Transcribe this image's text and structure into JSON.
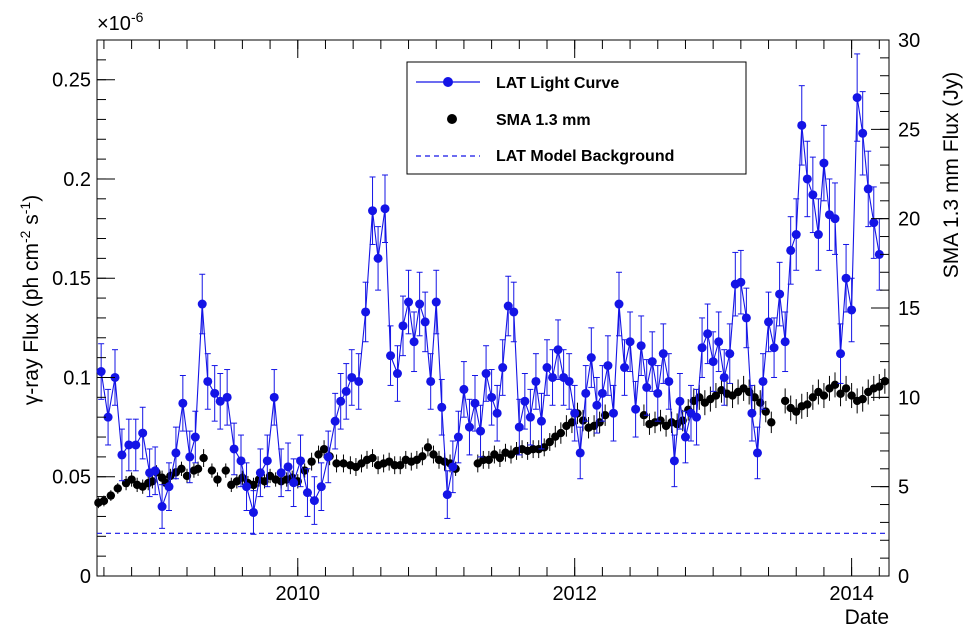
{
  "chart_data": {
    "type": "scatter",
    "x_axis": {
      "label": "Date",
      "range": [
        2008.55,
        2014.27
      ],
      "major_ticks": [
        2010,
        2012,
        2014
      ],
      "tick_labels": [
        "2010",
        "2012",
        "2014"
      ]
    },
    "y_left": {
      "label": "γ-ray Flux (ph cm⁻² s⁻¹)",
      "label_parts": {
        "pre": "γ-ray Flux (ph cm",
        "exp1": "-2",
        "mid": " s",
        "exp2": "-1",
        "post": ")"
      },
      "multiplier": "×10⁻⁶",
      "multiplier_parts": {
        "base": "×10",
        "exp": "-6"
      },
      "range": [
        0,
        0.27
      ],
      "ticks": [
        0,
        0.05,
        0.1,
        0.15,
        0.2,
        0.25
      ],
      "tick_labels": [
        "0",
        "0.05",
        "0.1",
        "0.15",
        "0.2",
        "0.25"
      ]
    },
    "y_right": {
      "label": "SMA 1.3 mm Flux (Jy)",
      "range": [
        0,
        30
      ],
      "ticks": [
        0,
        5,
        10,
        15,
        20,
        25,
        30
      ],
      "tick_labels": [
        "0",
        "5",
        "10",
        "15",
        "20",
        "25",
        "30"
      ]
    },
    "legend": {
      "placement": "top-center",
      "entries": [
        "LAT Light Curve",
        "SMA 1.3 mm",
        "LAT Model Background"
      ]
    },
    "colors": {
      "lat": "#1414e6",
      "sma": "#000000",
      "background": "#1414e6"
    },
    "series": [
      {
        "name": "LAT Light Curve",
        "axis": "left",
        "style": "line+markers",
        "x": [
          2008.58,
          2008.63,
          2008.68,
          2008.73,
          2008.78,
          2008.83,
          2008.88,
          2008.93,
          2008.97,
          2009.02,
          2009.07,
          2009.12,
          2009.17,
          2009.22,
          2009.26,
          2009.31,
          2009.35,
          2009.4,
          2009.44,
          2009.49,
          2009.54,
          2009.59,
          2009.63,
          2009.68,
          2009.73,
          2009.78,
          2009.83,
          2009.88,
          2009.93,
          2009.97,
          2010.02,
          2010.07,
          2010.12,
          2010.17,
          2010.22,
          2010.27,
          2010.31,
          2010.35,
          2010.39,
          2010.44,
          2010.49,
          2010.54,
          2010.58,
          2010.63,
          2010.67,
          2010.72,
          2010.76,
          2010.8,
          2010.84,
          2010.88,
          2010.92,
          2010.96,
          2011.0,
          2011.04,
          2011.08,
          2011.12,
          2011.16,
          2011.2,
          2011.24,
          2011.28,
          2011.32,
          2011.36,
          2011.4,
          2011.44,
          2011.48,
          2011.52,
          2011.56,
          2011.6,
          2011.64,
          2011.68,
          2011.72,
          2011.76,
          2011.8,
          2011.84,
          2011.88,
          2011.92,
          2011.96,
          2012.0,
          2012.04,
          2012.08,
          2012.12,
          2012.16,
          2012.2,
          2012.24,
          2012.28,
          2012.32,
          2012.36,
          2012.4,
          2012.44,
          2012.48,
          2012.52,
          2012.56,
          2012.6,
          2012.64,
          2012.68,
          2012.72,
          2012.76,
          2012.8,
          2012.84,
          2012.88,
          2012.92,
          2012.96,
          2013.0,
          2013.04,
          2013.08,
          2013.12,
          2013.16,
          2013.2,
          2013.24,
          2013.28,
          2013.32,
          2013.36,
          2013.4,
          2013.44,
          2013.48,
          2013.52,
          2013.56,
          2013.6,
          2013.64,
          2013.68,
          2013.72,
          2013.76,
          2013.8,
          2013.84,
          2013.88,
          2013.92,
          2013.96,
          2014.0,
          2014.04,
          2014.08,
          2014.12,
          2014.16,
          2014.2
        ],
        "y": [
          0.103,
          0.08,
          0.1,
          0.061,
          0.066,
          0.066,
          0.072,
          0.052,
          0.053,
          0.035,
          0.045,
          0.062,
          0.087,
          0.06,
          0.07,
          0.137,
          0.098,
          0.092,
          0.088,
          0.09,
          0.064,
          0.058,
          0.045,
          0.032,
          0.052,
          0.058,
          0.09,
          0.052,
          0.055,
          0.047,
          0.058,
          0.042,
          0.038,
          0.045,
          0.06,
          0.078,
          0.088,
          0.093,
          0.1,
          0.098,
          0.133,
          0.184,
          0.16,
          0.185,
          0.111,
          0.102,
          0.126,
          0.138,
          0.118,
          0.137,
          0.128,
          0.098,
          0.138,
          0.085,
          0.041,
          0.055,
          0.07,
          0.094,
          0.075,
          0.087,
          0.073,
          0.102,
          0.09,
          0.082,
          0.105,
          0.136,
          0.133,
          0.075,
          0.088,
          0.08,
          0.098,
          0.078,
          0.105,
          0.1,
          0.114,
          0.1,
          0.098,
          0.082,
          0.062,
          0.092,
          0.11,
          0.086,
          0.092,
          0.106,
          0.082,
          0.137,
          0.105,
          0.118,
          0.084,
          0.116,
          0.095,
          0.108,
          0.092,
          0.112,
          0.098,
          0.058,
          0.088,
          0.07,
          0.082,
          0.08,
          0.115,
          0.122,
          0.108,
          0.118,
          0.1,
          0.112,
          0.147,
          0.148,
          0.13,
          0.082,
          0.062,
          0.098,
          0.128,
          0.115,
          0.142,
          0.118,
          0.164,
          0.172,
          0.227,
          0.2,
          0.192,
          0.172,
          0.208,
          0.182,
          0.18,
          0.112,
          0.15,
          0.134,
          0.241,
          0.223,
          0.195,
          0.178,
          0.162
        ],
        "yerr": [
          0.014,
          0.014,
          0.014,
          0.013,
          0.013,
          0.013,
          0.013,
          0.012,
          0.012,
          0.011,
          0.012,
          0.013,
          0.014,
          0.013,
          0.013,
          0.015,
          0.014,
          0.014,
          0.014,
          0.014,
          0.013,
          0.013,
          0.012,
          0.011,
          0.012,
          0.013,
          0.014,
          0.012,
          0.012,
          0.012,
          0.013,
          0.012,
          0.012,
          0.012,
          0.013,
          0.014,
          0.014,
          0.014,
          0.014,
          0.014,
          0.015,
          0.017,
          0.016,
          0.017,
          0.015,
          0.014,
          0.015,
          0.016,
          0.015,
          0.016,
          0.015,
          0.014,
          0.016,
          0.014,
          0.012,
          0.013,
          0.013,
          0.014,
          0.014,
          0.014,
          0.013,
          0.014,
          0.014,
          0.014,
          0.014,
          0.015,
          0.015,
          0.014,
          0.014,
          0.014,
          0.014,
          0.014,
          0.014,
          0.014,
          0.015,
          0.014,
          0.014,
          0.014,
          0.013,
          0.014,
          0.015,
          0.014,
          0.014,
          0.015,
          0.014,
          0.016,
          0.014,
          0.015,
          0.014,
          0.015,
          0.014,
          0.015,
          0.014,
          0.015,
          0.014,
          0.013,
          0.014,
          0.013,
          0.014,
          0.014,
          0.015,
          0.015,
          0.015,
          0.015,
          0.014,
          0.015,
          0.016,
          0.016,
          0.015,
          0.014,
          0.013,
          0.014,
          0.015,
          0.015,
          0.016,
          0.015,
          0.017,
          0.018,
          0.02,
          0.019,
          0.019,
          0.018,
          0.019,
          0.018,
          0.018,
          0.015,
          0.017,
          0.016,
          0.022,
          0.021,
          0.019,
          0.018,
          0.018
        ]
      },
      {
        "name": "SMA 1.3 mm",
        "axis": "right",
        "style": "markers",
        "x": [
          2008.56,
          2008.6,
          2008.65,
          2008.7,
          2008.76,
          2008.8,
          2008.84,
          2008.88,
          2008.92,
          2008.95,
          2008.98,
          2009.02,
          2009.05,
          2009.08,
          2009.12,
          2009.16,
          2009.2,
          2009.25,
          2009.28,
          2009.32,
          2009.38,
          2009.42,
          2009.48,
          2009.52,
          2009.56,
          2009.6,
          2009.64,
          2009.68,
          2009.72,
          2009.76,
          2009.8,
          2009.84,
          2009.88,
          2009.92,
          2009.96,
          2010.0,
          2010.05,
          2010.1,
          2010.15,
          2010.19,
          2010.23,
          2010.28,
          2010.33,
          2010.38,
          2010.42,
          2010.46,
          2010.5,
          2010.54,
          2010.58,
          2010.62,
          2010.66,
          2010.7,
          2010.74,
          2010.78,
          2010.82,
          2010.86,
          2010.9,
          2010.94,
          2010.98,
          2011.02,
          2011.06,
          2011.1,
          2011.14,
          2011.3,
          2011.34,
          2011.38,
          2011.42,
          2011.46,
          2011.5,
          2011.54,
          2011.58,
          2011.62,
          2011.66,
          2011.7,
          2011.74,
          2011.78,
          2011.82,
          2011.86,
          2011.9,
          2011.94,
          2011.98,
          2012.02,
          2012.06,
          2012.1,
          2012.14,
          2012.18,
          2012.22,
          2012.5,
          2012.54,
          2012.58,
          2012.62,
          2012.66,
          2012.7,
          2012.74,
          2012.78,
          2012.82,
          2012.86,
          2012.9,
          2012.94,
          2012.98,
          2013.02,
          2013.06,
          2013.1,
          2013.14,
          2013.18,
          2013.22,
          2013.26,
          2013.3,
          2013.34,
          2013.38,
          2013.42,
          2013.52,
          2013.56,
          2013.6,
          2013.64,
          2013.68,
          2013.72,
          2013.76,
          2013.8,
          2013.84,
          2013.88,
          2013.92,
          2013.96,
          2014.0,
          2014.04,
          2014.08,
          2014.12,
          2014.16,
          2014.2,
          2014.24
        ],
        "y": [
          4.1,
          4.2,
          4.5,
          4.9,
          5.2,
          5.4,
          5.1,
          5.0,
          5.2,
          5.3,
          5.8,
          5.5,
          5.2,
          5.6,
          5.8,
          6.0,
          5.6,
          5.9,
          6.0,
          6.6,
          5.9,
          5.4,
          5.9,
          5.1,
          5.3,
          5.5,
          5.2,
          5.1,
          5.4,
          5.3,
          5.6,
          5.4,
          5.3,
          5.4,
          5.5,
          5.3,
          5.9,
          6.4,
          6.8,
          7.1,
          6.7,
          6.3,
          6.3,
          6.2,
          6.1,
          6.3,
          6.5,
          6.6,
          6.2,
          6.3,
          6.4,
          6.2,
          6.2,
          6.5,
          6.4,
          6.5,
          6.7,
          7.2,
          6.8,
          6.5,
          6.4,
          6.3,
          6.0,
          6.3,
          6.5,
          6.5,
          6.8,
          6.6,
          6.9,
          6.8,
          7.0,
          7.1,
          7.0,
          7.1,
          7.1,
          7.2,
          7.5,
          7.8,
          8.0,
          8.4,
          8.6,
          9.1,
          8.7,
          8.3,
          8.4,
          8.6,
          9.0,
          9.0,
          8.5,
          8.6,
          8.7,
          8.4,
          8.6,
          8.5,
          8.7,
          9.3,
          9.8,
          10.0,
          9.7,
          9.9,
          10.1,
          10.4,
          10.2,
          10.1,
          10.3,
          10.5,
          10.3,
          10.0,
          9.7,
          9.2,
          8.6,
          9.8,
          9.4,
          9.2,
          9.5,
          9.6,
          10.0,
          10.3,
          10.1,
          10.5,
          10.7,
          10.2,
          10.5,
          10.1,
          9.8,
          9.9,
          10.3,
          10.5,
          10.6,
          10.9
        ],
        "yerr": [
          0.3,
          0.3,
          0.3,
          0.3,
          0.4,
          0.4,
          0.4,
          0.4,
          0.4,
          0.4,
          0.4,
          0.4,
          0.4,
          0.4,
          0.4,
          0.4,
          0.4,
          0.4,
          0.4,
          0.5,
          0.4,
          0.4,
          0.4,
          0.4,
          0.4,
          0.4,
          0.4,
          0.4,
          0.4,
          0.4,
          0.4,
          0.4,
          0.4,
          0.4,
          0.4,
          0.4,
          0.4,
          0.5,
          0.5,
          0.5,
          0.5,
          0.5,
          0.5,
          0.5,
          0.5,
          0.5,
          0.5,
          0.5,
          0.5,
          0.5,
          0.5,
          0.5,
          0.5,
          0.5,
          0.5,
          0.5,
          0.5,
          0.5,
          0.5,
          0.5,
          0.5,
          0.5,
          0.4,
          0.5,
          0.5,
          0.5,
          0.5,
          0.5,
          0.5,
          0.5,
          0.5,
          0.5,
          0.5,
          0.5,
          0.5,
          0.5,
          0.5,
          0.6,
          0.6,
          0.6,
          0.6,
          0.6,
          0.6,
          0.6,
          0.6,
          0.6,
          0.6,
          0.6,
          0.6,
          0.6,
          0.6,
          0.6,
          0.6,
          0.6,
          0.6,
          0.6,
          0.7,
          0.7,
          0.7,
          0.7,
          0.7,
          0.7,
          0.7,
          0.7,
          0.7,
          0.7,
          0.7,
          0.7,
          0.7,
          0.6,
          0.6,
          0.7,
          0.7,
          0.7,
          0.7,
          0.7,
          0.7,
          0.7,
          0.7,
          0.7,
          0.7,
          0.7,
          0.7,
          0.7,
          0.7,
          0.7,
          0.7,
          0.7,
          0.7,
          0.7
        ]
      },
      {
        "name": "LAT Model Background",
        "axis": "left",
        "style": "dashed-line",
        "y_constant": 0.0215
      }
    ]
  }
}
